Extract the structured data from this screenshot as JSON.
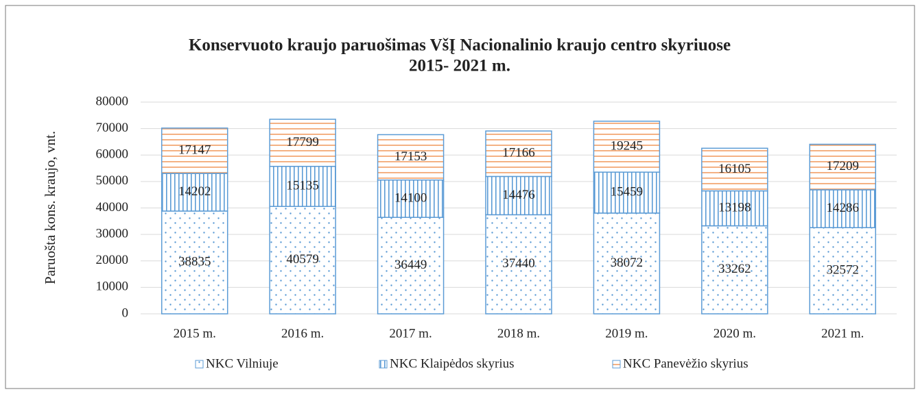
{
  "chart_data": {
    "type": "stacked_bar",
    "title": [
      "Konservuoto kraujo paruošimas VšĮ Nacionalinio kraujo centro skyriuose",
      "2015- 2021 m."
    ],
    "y_label": "Paruošta kons. kraujo, vnt.",
    "categories": [
      "2015 m.",
      "2016 m.",
      "2017 m.",
      "2018 m.",
      "2019 m.",
      "2020 m.",
      "2021 m."
    ],
    "series": [
      {
        "name": "NKC Vilniuje",
        "color": "#5b9bd5",
        "pattern": "dots",
        "values": [
          38835,
          40579,
          36449,
          37440,
          38072,
          33262,
          32572
        ]
      },
      {
        "name": "NKC Klaipėdos skyrius",
        "color": "#5b9bd5",
        "pattern": "vertical",
        "values": [
          14202,
          15135,
          14100,
          14476,
          15459,
          13198,
          14286
        ]
      },
      {
        "name": "NKC Panevėžio skyrius",
        "color": "#f4b183",
        "pattern": "horizontal",
        "values": [
          17147,
          17799,
          17153,
          17166,
          19245,
          16105,
          17209
        ]
      }
    ],
    "ylim": [
      0,
      80000
    ],
    "yticks": [
      0,
      10000,
      20000,
      30000,
      40000,
      50000,
      60000,
      70000,
      80000
    ],
    "grid": true,
    "legend": "bottom"
  }
}
